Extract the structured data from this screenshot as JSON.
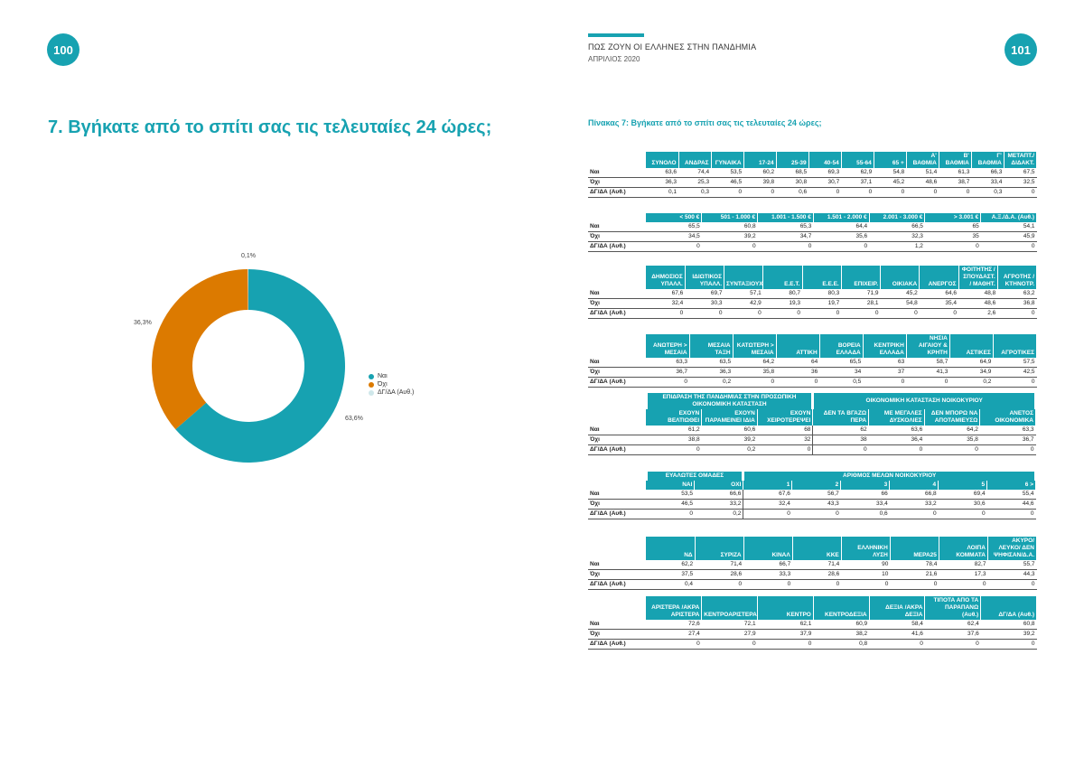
{
  "page_left": "100",
  "page_right": "101",
  "header_title": "ΠΩΣ ΖΟΥΝ ΟΙ ΕΛΛΗΝΕΣ ΣΤΗΝ ΠΑΝΔΗΜΙΑ",
  "header_date": "ΑΠΡΙΛΙΟΣ 2020",
  "question_title": "7. Βγήκατε από το σπίτι σας τις τελευταίες 24 ώρες;",
  "table_title": "Πίνακας 7: Βγήκατε από το σπίτι σας τις τελευταίες 24 ώρες;",
  "chart_data": {
    "type": "pie",
    "categories": [
      "Ναι",
      "Όχι",
      "ΔΓ/ΔΑ (Αυθ.)"
    ],
    "values": [
      63.6,
      36.3,
      0.1
    ],
    "value_labels": [
      "63,6%",
      "36,3%",
      "0,1%"
    ],
    "colors": [
      "#17a2b1",
      "#dc7a00",
      "#cfe7ea"
    ],
    "title": "",
    "donut": true,
    "legend": "right"
  },
  "tables": [
    {
      "groups": null,
      "headers": [
        "ΣΥΝΟΛΟ",
        "ΑΝΔΡΑΣ",
        "ΓΥΝΑΙΚΑ",
        "17-24",
        "25-39",
        "40-54",
        "55-64",
        "65 +",
        "Α' ΒΑΘΜΙΑ",
        "Β' ΒΑΘΜΙΑ",
        "Γ' ΒΑΘΜΙΑ",
        "ΜΕΤΑΠΤ./ ΔΙΔΑΚΤ."
      ],
      "rows": [
        {
          "label": "Ναι",
          "cells": [
            "63,6",
            "74,4",
            "53,5",
            "60,2",
            "68,5",
            "69,3",
            "62,9",
            "54,8",
            "51,4",
            "61,3",
            "66,3",
            "67,5"
          ]
        },
        {
          "label": "Όχι",
          "cells": [
            "36,3",
            "25,3",
            "46,5",
            "39,8",
            "30,8",
            "30,7",
            "37,1",
            "45,2",
            "48,6",
            "38,7",
            "33,4",
            "32,5"
          ]
        },
        {
          "label": "ΔΓ/ΔΑ (Αυθ.)",
          "cells": [
            "0,1",
            "0,3",
            "0",
            "0",
            "0,6",
            "0",
            "0",
            "0",
            "0",
            "0",
            "0,3",
            "0"
          ]
        }
      ]
    },
    {
      "groups": null,
      "headers": [
        "< 500 €",
        "501 - 1.000 €",
        "1.001 - 1.500 €",
        "1.501 - 2.000 €",
        "2.001 - 3.000 €",
        "> 3.001 €",
        "Α.Ξ./Δ.Α. (Αυθ.)"
      ],
      "rows": [
        {
          "label": "Ναι",
          "cells": [
            "65,5",
            "60,8",
            "65,3",
            "64,4",
            "66,5",
            "65",
            "54,1"
          ]
        },
        {
          "label": "Όχι",
          "cells": [
            "34,5",
            "39,2",
            "34,7",
            "35,6",
            "32,3",
            "35",
            "45,9"
          ]
        },
        {
          "label": "ΔΓ/ΔΑ (Αυθ.)",
          "cells": [
            "0",
            "0",
            "0",
            "0",
            "1,2",
            "0",
            "0"
          ]
        }
      ]
    },
    {
      "groups": null,
      "headers": [
        "ΔΗΜΟΣΙΟΣ ΥΠΑΛΛ.",
        "ΙΔΙΩΤΙΚΟΣ ΥΠΑΛΛ.",
        "ΣΥΝΤΑΞΙΟΥΧΟΣ",
        "Ε.Ε.Τ.",
        "Ε.Ε.Ε.",
        "ΕΠΙΧΕΙΡ.",
        "ΟΙΚΙΑΚΑ",
        "ΑΝΕΡΓΟΣ",
        "ΦΟΙΤΗΤΗΣ / ΣΠΟΥΔΑΣΤ. / ΜΑΘΗΤ.",
        "ΑΓΡΟΤΗΣ / ΚΤΗΝΟΤΡ."
      ],
      "rows": [
        {
          "label": "Ναι",
          "cells": [
            "67,6",
            "69,7",
            "57,1",
            "80,7",
            "80,3",
            "71,9",
            "45,2",
            "64,6",
            "48,8",
            "63,2"
          ]
        },
        {
          "label": "Όχι",
          "cells": [
            "32,4",
            "30,3",
            "42,9",
            "19,3",
            "19,7",
            "28,1",
            "54,8",
            "35,4",
            "48,6",
            "36,8"
          ]
        },
        {
          "label": "ΔΓ/ΔΑ (Αυθ.)",
          "cells": [
            "0",
            "0",
            "0",
            "0",
            "0",
            "0",
            "0",
            "0",
            "2,6",
            "0"
          ]
        }
      ]
    },
    {
      "groups": null,
      "headers": [
        "ΑΝΩΤΕΡΗ > ΜΕΣΑΙΑ",
        "ΜΕΣΑΙΑ ΤΑΞΗ",
        "ΚΑΤΩΤΕΡΗ > ΜΕΣΑΙΑ",
        "ΑΤΤΙΚΗ",
        "ΒΟΡΕΙΑ ΕΛΛΑΔΑ",
        "ΚΕΝΤΡΙΚΗ ΕΛΛΑΔΑ",
        "ΝΗΣΙΑ ΑΙΓΑΙΟΥ & ΚΡΗΤΗ",
        "ΑΣΤΙΚΕΣ",
        "ΑΓΡΟΤΙΚΕΣ"
      ],
      "rows": [
        {
          "label": "Ναι",
          "cells": [
            "63,3",
            "63,5",
            "64,2",
            "64",
            "65,5",
            "63",
            "58,7",
            "64,9",
            "57,5"
          ]
        },
        {
          "label": "Όχι",
          "cells": [
            "36,7",
            "36,3",
            "35,8",
            "36",
            "34",
            "37",
            "41,3",
            "34,9",
            "42,5"
          ]
        },
        {
          "label": "ΔΓ/ΔΑ (Αυθ.)",
          "cells": [
            "0",
            "0,2",
            "0",
            "0",
            "0,5",
            "0",
            "0",
            "0,2",
            "0"
          ]
        }
      ]
    },
    {
      "groups": [
        "ΕΠΙΔΡΑΣΗ ΤΗΣ ΠΑΝΔΗΜΙΑΣ ΣΤΗΝ ΠΡΟΣΩΠΙΚΗ ΟΙΚΟΝΟΜΙΚΗ ΚΑΤΑΣΤΑΣΗ",
        "ΟΙΚΟΝΟΜΙΚΗ ΚΑΤΑΣΤΑΣΗ ΝΟΙΚΟΚΥΡΙΟΥ"
      ],
      "headers": [
        "ΕΧΟΥΝ ΒΕΛΤΙΩΘΕΙ",
        "ΕΧΟΥΝ ΠΑΡΑΜΕΙΝΕΙ ΙΔΙΑ",
        "ΕΧΟΥΝ ΧΕΙΡΟΤΕΡΕΨΕΙ",
        "ΔΕΝ ΤΑ ΒΓΑΖΩ ΠΕΡΑ",
        "ΜΕ ΜΕΓΑΛΕΣ ΔΥΣΚΟΛΙΕΣ",
        "ΔΕΝ ΜΠΟΡΩ ΝΑ ΑΠΟΤΑΜΙΕΥΣΩ",
        "ΑΝΕΤΟΣ ΟΙΚΟΝΟΜΙΚΑ"
      ],
      "rows": [
        {
          "label": "Ναι",
          "cells": [
            "61,2",
            "60,6",
            "68",
            "62",
            "63,6",
            "64,2",
            "63,3"
          ]
        },
        {
          "label": "Όχι",
          "cells": [
            "38,8",
            "39,2",
            "32",
            "38",
            "36,4",
            "35,8",
            "36,7"
          ]
        },
        {
          "label": "ΔΓ/ΔΑ (Αυθ.)",
          "cells": [
            "0",
            "0,2",
            "0",
            "0",
            "0",
            "0",
            "0"
          ]
        }
      ]
    },
    {
      "groups": [
        "ΕΥΑΛΩΤΕΣ ΟΜΑΔΕΣ",
        "ΑΡΙΘΜΟΣ ΜΕΛΩΝ ΝΟΙΚΟΚΥΡΙΟΥ"
      ],
      "headers": [
        "ΝΑΙ",
        "ΟΧΙ",
        "1",
        "2",
        "3",
        "4",
        "5",
        "6 >"
      ],
      "rows": [
        {
          "label": "Ναι",
          "cells": [
            "53,5",
            "66,6",
            "67,6",
            "56,7",
            "66",
            "66,8",
            "69,4",
            "55,4"
          ]
        },
        {
          "label": "Όχι",
          "cells": [
            "46,5",
            "33,2",
            "32,4",
            "43,3",
            "33,4",
            "33,2",
            "30,6",
            "44,6"
          ]
        },
        {
          "label": "ΔΓ/ΔΑ (Αυθ.)",
          "cells": [
            "0",
            "0,2",
            "0",
            "0",
            "0,6",
            "0",
            "0",
            "0"
          ]
        }
      ]
    },
    {
      "groups": null,
      "headers": [
        "ΝΔ",
        "ΣΥΡΙΖΑ",
        "ΚΙΝΑΛ",
        "ΚΚΕ",
        "ΕΛΛΗΝΙΚΗ ΛΥΣΗ",
        "ΜΕΡΑ25",
        "ΛΟΙΠΑ ΚΟΜΜΑΤΑ",
        "ΑΚΥΡΟ/ΛΕΥΚΟ/ ΔΕΝ ΨΗΦΙΣΑΝ/Δ.Α."
      ],
      "rows": [
        {
          "label": "Ναι",
          "cells": [
            "62,2",
            "71,4",
            "66,7",
            "71,4",
            "90",
            "78,4",
            "82,7",
            "55,7"
          ]
        },
        {
          "label": "Όχι",
          "cells": [
            "37,5",
            "28,6",
            "33,3",
            "28,6",
            "10",
            "21,6",
            "17,3",
            "44,3"
          ]
        },
        {
          "label": "ΔΓ/ΔΑ (Αυθ.)",
          "cells": [
            "0,4",
            "0",
            "0",
            "0",
            "0",
            "0",
            "0",
            "0"
          ]
        }
      ]
    },
    {
      "groups": null,
      "headers": [
        "ΑΡΙΣΤΕΡΑ /ΑΚΡΑ ΑΡΙΣΤΕΡΑ",
        "ΚΕΝΤΡΟΑΡΙΣΤΕΡΑ",
        "ΚΕΝΤΡΟ",
        "ΚΕΝΤΡΟΔΕΞΙΑ",
        "ΔΕΞΙΑ /ΑΚΡΑ ΔΕΞΙΑ",
        "ΤΙΠΟΤΑ ΑΠΟ ΤΑ ΠΑΡΑΠΑΝΩ (Αυθ.)",
        "ΔΓ/ΔΑ (Αυθ.)"
      ],
      "rows": [
        {
          "label": "Ναι",
          "cells": [
            "72,6",
            "72,1",
            "62,1",
            "60,9",
            "58,4",
            "62,4",
            "60,8"
          ]
        },
        {
          "label": "Όχι",
          "cells": [
            "27,4",
            "27,9",
            "37,9",
            "38,2",
            "41,6",
            "37,6",
            "39,2"
          ]
        },
        {
          "label": "ΔΓ/ΔΑ (Αυθ.)",
          "cells": [
            "0",
            "0",
            "0",
            "0,8",
            "0",
            "0",
            "0"
          ]
        }
      ]
    }
  ]
}
